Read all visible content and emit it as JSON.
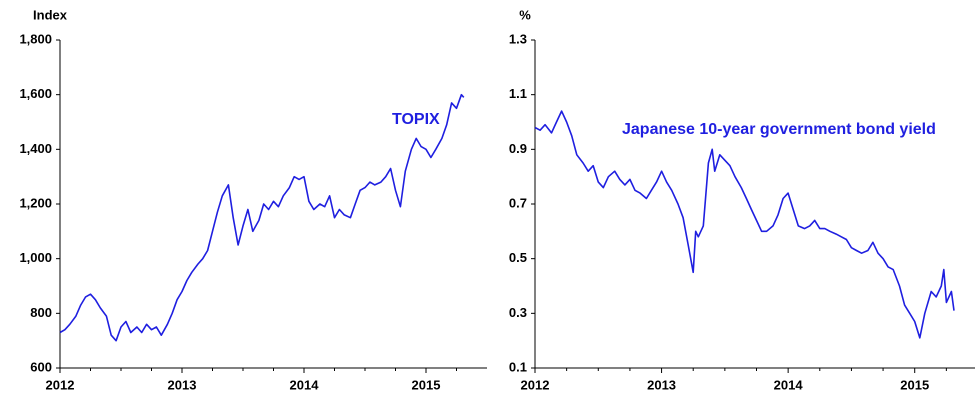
{
  "chart_data": [
    {
      "type": "line",
      "y_label": "Index",
      "annotation": "TOPIX",
      "xlim": [
        2012,
        2015.5
      ],
      "xticks": [
        2012,
        2013,
        2014,
        2015
      ],
      "ylim": [
        600,
        1800
      ],
      "yticks": [
        600,
        800,
        {
          "value": 1000,
          "label": "1,000"
        },
        {
          "value": 1200,
          "label": "1,200"
        },
        {
          "value": 1400,
          "label": "1,400"
        },
        {
          "value": 1600,
          "label": "1,600"
        },
        {
          "value": 1800,
          "label": "1,800"
        }
      ],
      "grid": false,
      "series": [
        {
          "name": "TOPIX",
          "color": "#1f1fe0",
          "x": [
            2012.0,
            2012.04,
            2012.08,
            2012.13,
            2012.17,
            2012.21,
            2012.25,
            2012.29,
            2012.33,
            2012.38,
            2012.42,
            2012.46,
            2012.5,
            2012.54,
            2012.58,
            2012.63,
            2012.67,
            2012.71,
            2012.75,
            2012.79,
            2012.83,
            2012.88,
            2012.92,
            2012.96,
            2013.0,
            2013.04,
            2013.08,
            2013.13,
            2013.17,
            2013.21,
            2013.25,
            2013.29,
            2013.33,
            2013.38,
            2013.42,
            2013.46,
            2013.5,
            2013.54,
            2013.58,
            2013.63,
            2013.67,
            2013.71,
            2013.75,
            2013.79,
            2013.83,
            2013.88,
            2013.92,
            2013.96,
            2014.0,
            2014.04,
            2014.08,
            2014.13,
            2014.17,
            2014.21,
            2014.25,
            2014.29,
            2014.33,
            2014.38,
            2014.42,
            2014.46,
            2014.5,
            2014.54,
            2014.58,
            2014.63,
            2014.67,
            2014.71,
            2014.75,
            2014.79,
            2014.83,
            2014.88,
            2014.92,
            2014.96,
            2015.0,
            2015.04,
            2015.08,
            2015.13,
            2015.17,
            2015.21,
            2015.25,
            2015.29,
            2015.31
          ],
          "values": [
            730,
            740,
            760,
            790,
            830,
            860,
            870,
            850,
            820,
            790,
            720,
            700,
            750,
            770,
            730,
            750,
            730,
            760,
            740,
            750,
            720,
            760,
            800,
            850,
            880,
            920,
            950,
            980,
            1000,
            1030,
            1100,
            1170,
            1230,
            1270,
            1150,
            1050,
            1120,
            1180,
            1100,
            1140,
            1200,
            1180,
            1210,
            1190,
            1230,
            1260,
            1300,
            1290,
            1300,
            1210,
            1180,
            1200,
            1190,
            1230,
            1150,
            1180,
            1160,
            1150,
            1200,
            1250,
            1260,
            1280,
            1270,
            1280,
            1300,
            1330,
            1250,
            1190,
            1320,
            1400,
            1440,
            1410,
            1400,
            1370,
            1400,
            1440,
            1490,
            1570,
            1550,
            1600,
            1590
          ]
        }
      ]
    },
    {
      "type": "line",
      "y_label": "%",
      "annotation": "Japanese 10-year government bond yield",
      "xlim": [
        2012,
        2015.5
      ],
      "xticks": [
        2012,
        2013,
        2014,
        2015
      ],
      "ylim": [
        0.1,
        1.3
      ],
      "yticks": [
        0.1,
        0.3,
        0.5,
        0.7,
        0.9,
        1.1,
        1.3
      ],
      "grid": false,
      "series": [
        {
          "name": "Japanese 10-year government bond yield",
          "color": "#1f1fe0",
          "x": [
            2012.0,
            2012.04,
            2012.08,
            2012.13,
            2012.17,
            2012.21,
            2012.25,
            2012.29,
            2012.33,
            2012.38,
            2012.42,
            2012.46,
            2012.5,
            2012.54,
            2012.58,
            2012.63,
            2012.67,
            2012.71,
            2012.75,
            2012.79,
            2012.83,
            2012.88,
            2012.92,
            2012.96,
            2013.0,
            2013.04,
            2013.08,
            2013.13,
            2013.17,
            2013.21,
            2013.25,
            2013.27,
            2013.29,
            2013.33,
            2013.37,
            2013.4,
            2013.42,
            2013.46,
            2013.5,
            2013.54,
            2013.58,
            2013.63,
            2013.67,
            2013.71,
            2013.75,
            2013.79,
            2013.83,
            2013.88,
            2013.92,
            2013.96,
            2014.0,
            2014.04,
            2014.08,
            2014.13,
            2014.17,
            2014.21,
            2014.25,
            2014.29,
            2014.33,
            2014.38,
            2014.42,
            2014.46,
            2014.5,
            2014.54,
            2014.58,
            2014.63,
            2014.67,
            2014.71,
            2014.75,
            2014.79,
            2014.83,
            2014.88,
            2014.92,
            2014.96,
            2015.0,
            2015.04,
            2015.08,
            2015.13,
            2015.17,
            2015.21,
            2015.23,
            2015.25,
            2015.29,
            2015.31
          ],
          "values": [
            0.98,
            0.97,
            0.99,
            0.96,
            1.0,
            1.04,
            1.0,
            0.95,
            0.88,
            0.85,
            0.82,
            0.84,
            0.78,
            0.76,
            0.8,
            0.82,
            0.79,
            0.77,
            0.79,
            0.75,
            0.74,
            0.72,
            0.75,
            0.78,
            0.82,
            0.78,
            0.75,
            0.7,
            0.65,
            0.55,
            0.45,
            0.6,
            0.58,
            0.62,
            0.85,
            0.9,
            0.82,
            0.88,
            0.86,
            0.84,
            0.8,
            0.76,
            0.72,
            0.68,
            0.64,
            0.6,
            0.6,
            0.62,
            0.66,
            0.72,
            0.74,
            0.68,
            0.62,
            0.61,
            0.62,
            0.64,
            0.61,
            0.61,
            0.6,
            0.59,
            0.58,
            0.57,
            0.54,
            0.53,
            0.52,
            0.53,
            0.56,
            0.52,
            0.5,
            0.47,
            0.46,
            0.4,
            0.33,
            0.3,
            0.27,
            0.21,
            0.3,
            0.38,
            0.36,
            0.4,
            0.46,
            0.34,
            0.38,
            0.31
          ]
        }
      ]
    }
  ]
}
